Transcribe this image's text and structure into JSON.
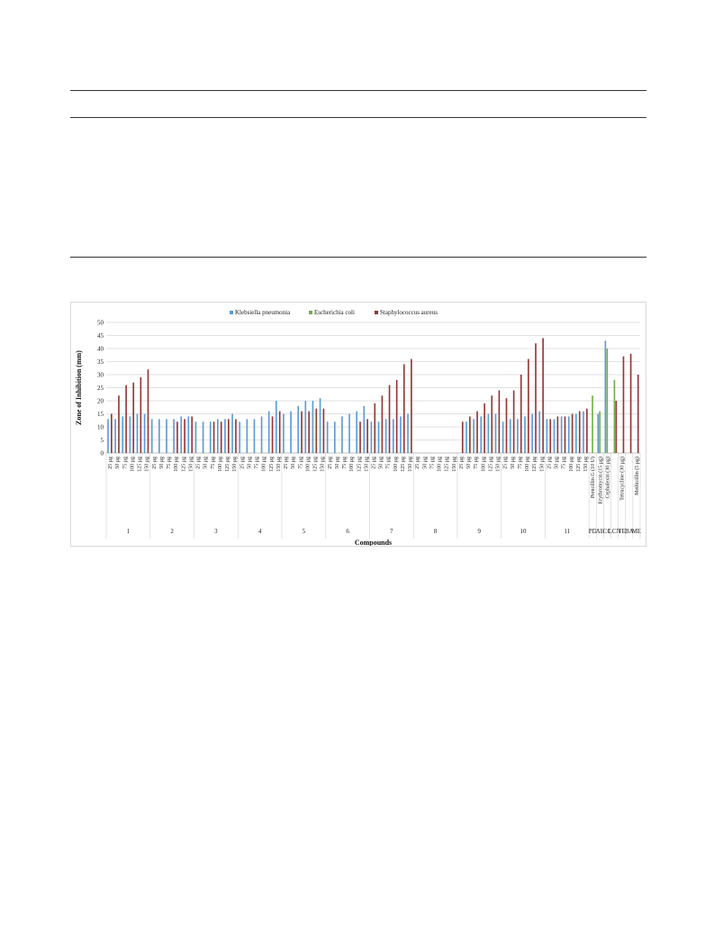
{
  "chart_data": {
    "type": "bar",
    "ylabel": "Zone of Inhibition  (mm)",
    "xlabel": "Compounds",
    "ylim": [
      0,
      50
    ],
    "yticks": [
      0,
      5,
      10,
      15,
      20,
      25,
      30,
      35,
      40,
      45,
      50
    ],
    "grid": true,
    "legend_position": "top",
    "series": [
      {
        "name": "Klebsiella pneumonia",
        "color": "#5b9bd5"
      },
      {
        "name": "Escherichia coli",
        "color": "#70ad47"
      },
      {
        "name": "Staphylococcus aureus",
        "color": "#943634"
      }
    ],
    "groups": [
      {
        "label": "1",
        "categories": [
          "25 μg",
          "50 μg",
          "75 μg",
          "100 μg",
          "125 μg",
          "150 μg"
        ],
        "values": [
          [
            13,
            0,
            15
          ],
          [
            13,
            0,
            22
          ],
          [
            14,
            0,
            26
          ],
          [
            14,
            0,
            27
          ],
          [
            15,
            0,
            29
          ],
          [
            15,
            0,
            32
          ]
        ]
      },
      {
        "label": "2",
        "categories": [
          "25 μg",
          "50 μg",
          "75 μg",
          "100 μg",
          "125 μg",
          "150 μg"
        ],
        "values": [
          [
            13,
            0,
            0
          ],
          [
            13,
            0,
            0
          ],
          [
            13,
            0,
            0
          ],
          [
            13,
            0,
            12
          ],
          [
            14,
            0,
            13
          ],
          [
            14,
            0,
            14
          ]
        ]
      },
      {
        "label": "3",
        "categories": [
          "25 μg",
          "50 μg",
          "75 μg",
          "100 μg",
          "125 μg",
          "150 μg"
        ],
        "values": [
          [
            12,
            0,
            0
          ],
          [
            12,
            0,
            0
          ],
          [
            12,
            0,
            12
          ],
          [
            13,
            0,
            12
          ],
          [
            13,
            0,
            13
          ],
          [
            15,
            0,
            13
          ]
        ]
      },
      {
        "label": "4",
        "categories": [
          "25 μg",
          "50 μg",
          "75 μg",
          "100 μg",
          "125 μg",
          "150 μg"
        ],
        "values": [
          [
            12,
            0,
            0
          ],
          [
            13,
            0,
            0
          ],
          [
            13,
            0,
            0
          ],
          [
            14,
            0,
            0
          ],
          [
            16,
            0,
            14
          ],
          [
            20,
            0,
            16
          ]
        ]
      },
      {
        "label": "5",
        "categories": [
          "25 μg",
          "50 μg",
          "75 μg",
          "100 μg",
          "125 μg",
          "150 μg"
        ],
        "values": [
          [
            15,
            0,
            0
          ],
          [
            16,
            0,
            0
          ],
          [
            18,
            0,
            16
          ],
          [
            20,
            0,
            16
          ],
          [
            20,
            0,
            17
          ],
          [
            21,
            0,
            17
          ]
        ]
      },
      {
        "label": "6",
        "categories": [
          "25 μg",
          "50 μg",
          "75 μg",
          "100 μg",
          "125 μg",
          "150 μg"
        ],
        "values": [
          [
            12,
            0,
            0
          ],
          [
            12,
            0,
            0
          ],
          [
            14,
            0,
            0
          ],
          [
            15,
            0,
            0
          ],
          [
            16,
            0,
            12
          ],
          [
            18,
            0,
            13
          ]
        ]
      },
      {
        "label": "7",
        "categories": [
          "25 μg",
          "50 μg",
          "75 μg",
          "100 μg",
          "125 μg",
          "150 μg"
        ],
        "values": [
          [
            12,
            0,
            19
          ],
          [
            12,
            0,
            22
          ],
          [
            13,
            0,
            26
          ],
          [
            13,
            0,
            28
          ],
          [
            14,
            0,
            34
          ],
          [
            15,
            0,
            36
          ]
        ]
      },
      {
        "label": "8",
        "categories": [
          "25 μg",
          "50 μg",
          "75 μg",
          "100 μg",
          "125 μg",
          "150 μg"
        ],
        "values": [
          [
            0,
            0,
            0
          ],
          [
            0,
            0,
            0
          ],
          [
            0,
            0,
            0
          ],
          [
            0,
            0,
            0
          ],
          [
            0,
            0,
            0
          ],
          [
            0,
            0,
            0
          ]
        ]
      },
      {
        "label": "9",
        "categories": [
          "25 μg",
          "50 μg",
          "75 μg",
          "100 μg",
          "125 μg",
          "150 μg"
        ],
        "values": [
          [
            0,
            0,
            12
          ],
          [
            12,
            0,
            14
          ],
          [
            13,
            0,
            16
          ],
          [
            14,
            0,
            19
          ],
          [
            15,
            0,
            22
          ],
          [
            15,
            0,
            24
          ]
        ]
      },
      {
        "label": "10",
        "categories": [
          "25 μg",
          "50 μg",
          "75 μg",
          "100 μg",
          "125 μg",
          "150 μg"
        ],
        "values": [
          [
            12,
            0,
            21
          ],
          [
            13,
            0,
            24
          ],
          [
            13,
            0,
            30
          ],
          [
            14,
            0,
            36
          ],
          [
            15,
            0,
            42
          ],
          [
            16,
            0,
            44
          ]
        ]
      },
      {
        "label": "11",
        "categories": [
          "25 μg",
          "50 μg",
          "75 μg",
          "100 μg",
          "125 μg",
          "150 μg"
        ],
        "values": [
          [
            13,
            0,
            13
          ],
          [
            13,
            0,
            14
          ],
          [
            14,
            0,
            14
          ],
          [
            14,
            0,
            15
          ],
          [
            15,
            0,
            16
          ],
          [
            16,
            0,
            17
          ]
        ]
      },
      {
        "label": "PD",
        "categories": [
          "Penicillin G (10 U)"
        ],
        "values": [
          [
            0,
            22,
            0
          ]
        ]
      },
      {
        "label": "AE",
        "categories": [
          "Erythromycin (15 μg)"
        ],
        "values": [
          [
            15,
            16,
            0
          ]
        ]
      },
      {
        "label": "CC",
        "categories": [
          "Cephalexin (30 μg)"
        ],
        "values": [
          [
            43,
            40,
            0
          ]
        ]
      },
      {
        "label": "LCN",
        "categories": [
          ""
        ],
        "values": [
          [
            0,
            28,
            20
          ]
        ]
      },
      {
        "label": "TE",
        "categories": [
          "Tetracycline (30 μg)"
        ],
        "values": [
          [
            0,
            0,
            37
          ]
        ]
      },
      {
        "label": "BA",
        "categories": [
          ""
        ],
        "values": [
          [
            0,
            0,
            38
          ]
        ]
      },
      {
        "label": "ME",
        "categories": [
          "Methicillin (5 μg)"
        ],
        "values": [
          [
            0,
            0,
            30
          ]
        ]
      }
    ]
  }
}
